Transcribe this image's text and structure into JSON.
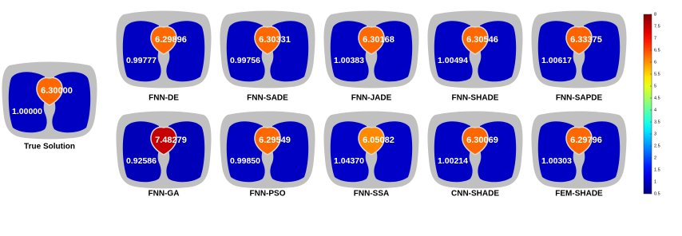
{
  "panels": [
    {
      "label": "True Solution",
      "heart": 6.3,
      "heart_label": "6.30000",
      "lung": 1,
      "lung_label": "1.00000"
    },
    {
      "label": "FNN-DE",
      "heart": 6.29896,
      "heart_label": "6.29896",
      "lung": 0.99777,
      "lung_label": "0.99777"
    },
    {
      "label": "FNN-SADE",
      "heart": 6.30331,
      "heart_label": "6.30331",
      "lung": 0.99756,
      "lung_label": "0.99756"
    },
    {
      "label": "FNN-JADE",
      "heart": 6.30168,
      "heart_label": "6.30168",
      "lung": 1.00383,
      "lung_label": "1.00383"
    },
    {
      "label": "FNN-SHADE",
      "heart": 6.30546,
      "heart_label": "6.30546",
      "lung": 1.00494,
      "lung_label": "1.00494"
    },
    {
      "label": "FNN-SAPDE",
      "heart": 6.33375,
      "heart_label": "6.33375",
      "lung": 1.00617,
      "lung_label": "1.00617"
    },
    {
      "label": "FNN-GA",
      "heart": 7.48279,
      "heart_label": "7.48279",
      "lung": 0.92586,
      "lung_label": "0.92586"
    },
    {
      "label": "FNN-PSO",
      "heart": 6.29549,
      "heart_label": "6.29549",
      "lung": 0.9985,
      "lung_label": "0.99850"
    },
    {
      "label": "FNN-SSA",
      "heart": 6.05082,
      "heart_label": "6.05082",
      "lung": 1.0437,
      "lung_label": "1.04370"
    },
    {
      "label": "CNN-SHADE",
      "heart": 6.30069,
      "heart_label": "6.30069",
      "lung": 1.00214,
      "lung_label": "1.00214"
    },
    {
      "label": "FEM-SHADE",
      "heart": 6.29796,
      "heart_label": "6.29796",
      "lung": 1.00303,
      "lung_label": "1.00303"
    }
  ],
  "colorbar": {
    "clim": [
      0.5,
      8
    ],
    "ticks": [
      0.5,
      1,
      1.5,
      2,
      2.5,
      3,
      3.5,
      4,
      4.5,
      5,
      5.5,
      6,
      6.5,
      7,
      7.5,
      8
    ]
  }
}
